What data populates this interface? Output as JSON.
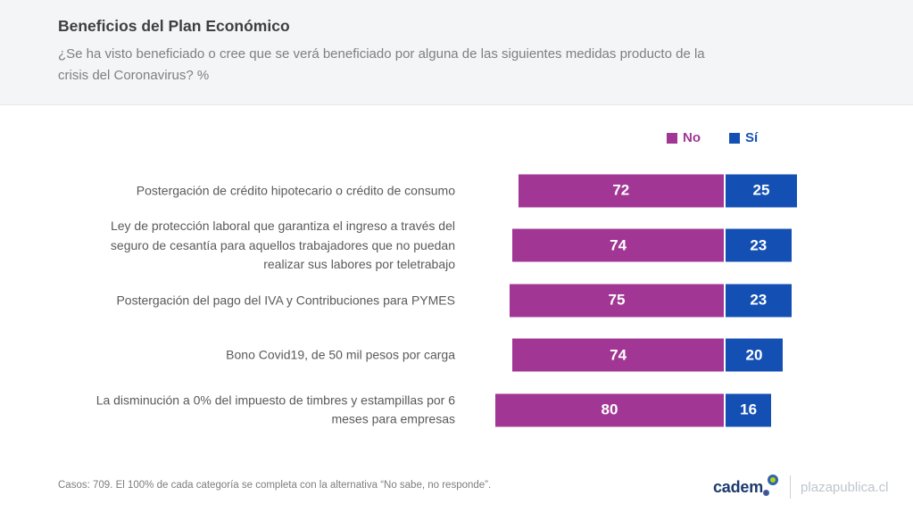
{
  "header": {
    "title": "Beneficios del Plan Económico",
    "subtitle": "¿Se ha visto beneficiado o cree que se verá beneficiado por alguna de las siguientes medidas producto de la crisis del Coronavirus? %"
  },
  "legend": {
    "items": [
      {
        "label": "No",
        "color": "#A13694"
      },
      {
        "label": "Sí",
        "color": "#1450B4"
      }
    ]
  },
  "chart_data": {
    "type": "bar",
    "orientation": "horizontal-stacked",
    "title": "Beneficios del Plan Económico",
    "question": "¿Se ha visto beneficiado o cree que se verá beneficiado por alguna de las siguientes medidas producto de la crisis del Coronavirus? %",
    "unit": "%",
    "xlim": [
      0,
      100
    ],
    "value_labels": true,
    "legend_position": "top-right",
    "categories": [
      "Postergación de crédito hipotecario o crédito de consumo",
      "Ley de protección laboral que garantiza el ingreso a través del\nseguro de cesantía para aquellos trabajadores que no puedan\nrealizar sus labores por teletrabajo",
      "Postergación del pago del IVA y Contribuciones para PYMES",
      "Bono Covid19, de 50 mil pesos por carga",
      "La disminución a 0% del impuesto de timbres y estampillas por 6\nmeses para empresas"
    ],
    "series": [
      {
        "name": "No",
        "color": "#A13694",
        "values": [
          72,
          74,
          75,
          74,
          80
        ]
      },
      {
        "name": "Sí",
        "color": "#1450B4",
        "values": [
          25,
          23,
          23,
          20,
          16
        ]
      }
    ]
  },
  "footer": {
    "note": "Casos: 709. El 100% de cada categoría se completa con la alternativa “No sabe, no responde”.",
    "brand": "cadem",
    "site": "plazapublica.cl"
  }
}
